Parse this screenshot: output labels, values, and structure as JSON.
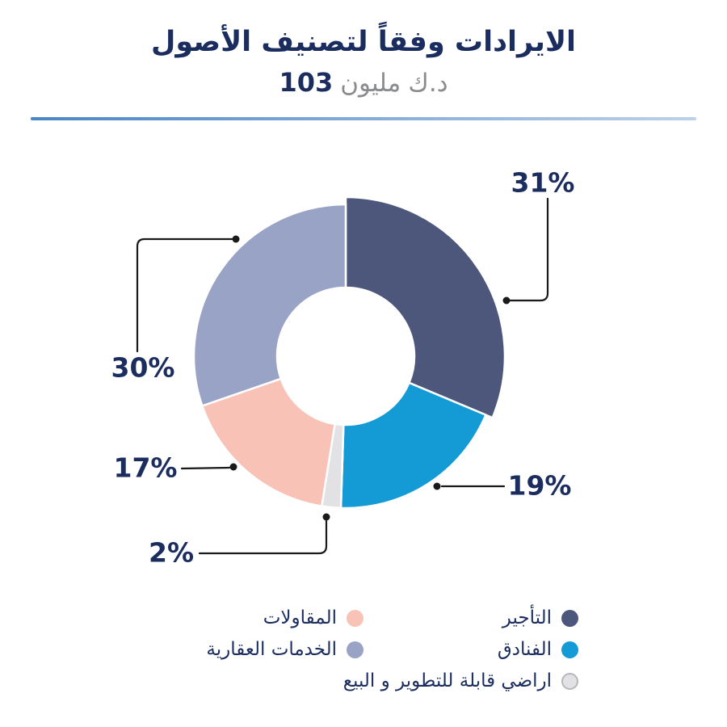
{
  "title": {
    "heading": "الايرادات وفقاً لتصنيف الأصول",
    "amount": "103",
    "amount_word_million": "مليون",
    "amount_word_currency": "د.ك"
  },
  "colors": {
    "heading_text": "#1b2d5e",
    "amount_unit_text": "#8a8c90",
    "divider_gradient_left": "#4a86c6",
    "divider_gradient_right": "#bdd1ea",
    "leader_line": "#1a1a1a",
    "gray_dot_border": "#b4b7bc"
  },
  "chart_data": {
    "type": "pie",
    "donut": true,
    "title": "الايرادات وفقاً لتصنيف الأصول",
    "subtitle": "103 مليون د.ك",
    "units": "percent",
    "legend_position": "bottom",
    "start_angle_deg": 0,
    "direction": "clockwise",
    "segments": [
      {
        "label": "التأجير",
        "value": 31,
        "pct_label": "31%",
        "color": "#4d577b",
        "exploded": true
      },
      {
        "label": "الفنادق",
        "value": 19,
        "pct_label": "19%",
        "color": "#149bd6",
        "exploded": false
      },
      {
        "label": "اراضي قابلة للتطوير و البيع",
        "value": 2,
        "pct_label": "2%",
        "color": "#e2e2e5",
        "exploded": false
      },
      {
        "label": "المقاولات",
        "value": 17,
        "pct_label": "17%",
        "color": "#f9c2b6",
        "exploded": false
      },
      {
        "label": "الخدمات العقارية",
        "value": 30,
        "pct_label": "30%",
        "color": "#99a3c5",
        "exploded": false
      }
    ]
  }
}
